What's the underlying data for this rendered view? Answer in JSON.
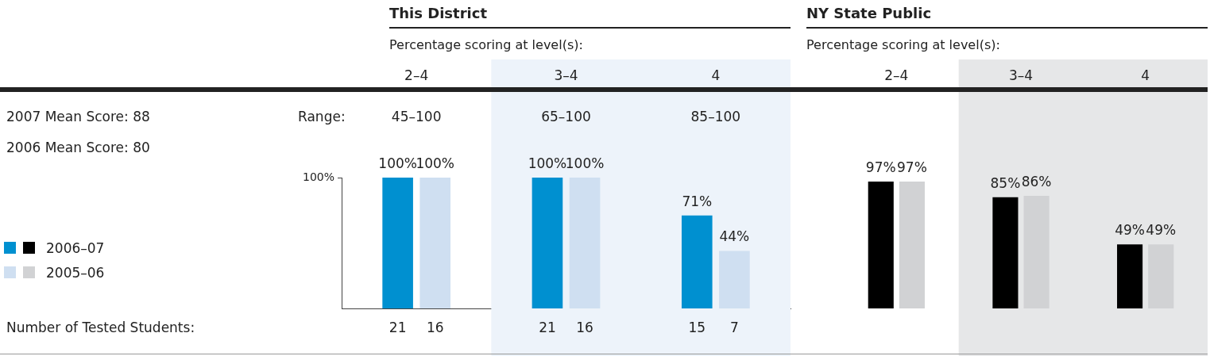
{
  "chart_data": [
    {
      "type": "bar",
      "title": "This District",
      "subtitle": "Percentage scoring at level(s):",
      "categories": [
        "2–4",
        "3–4",
        "4"
      ],
      "series": [
        {
          "name": "2006–07",
          "color": "#0090d0",
          "values": [
            100,
            100,
            71
          ],
          "value_labels": [
            "100%",
            "100%",
            "71%"
          ]
        },
        {
          "name": "2005–06",
          "color": "#cfdff1",
          "values": [
            100,
            100,
            44
          ],
          "value_labels": [
            "100%",
            "100%",
            "44%"
          ]
        }
      ],
      "ylim": [
        0,
        100
      ],
      "yticks": [
        {
          "value": 100,
          "label": "100%"
        }
      ],
      "legend": "left",
      "bands": [
        {
          "axis": "x",
          "from": "3–4",
          "to": "4",
          "color": "#edf3fa"
        }
      ],
      "annotations": [
        "2007 Mean Score: 88",
        "2006 Mean Score: 80",
        "Range:",
        "Number of Tested Students:",
        "45–100",
        "21",
        "16",
        "65–100",
        "21",
        "16",
        "85–100",
        "15",
        "7"
      ]
    },
    {
      "type": "bar",
      "title": "NY State Public",
      "subtitle": "Percentage scoring at level(s):",
      "categories": [
        "2–4",
        "3–4",
        "4"
      ],
      "series": [
        {
          "color": "#000000",
          "values": [
            97,
            85,
            49
          ],
          "value_labels": [
            "97%",
            "85%",
            "49%"
          ]
        },
        {
          "color": "#d1d2d4",
          "values": [
            97,
            86,
            49
          ],
          "value_labels": [
            "97%",
            "86%",
            "49%"
          ]
        }
      ],
      "bands": [
        {
          "axis": "x",
          "from": "3–4",
          "to": "4",
          "color": "#e6e7e8"
        }
      ],
      "tick_labels": "x"
    }
  ]
}
